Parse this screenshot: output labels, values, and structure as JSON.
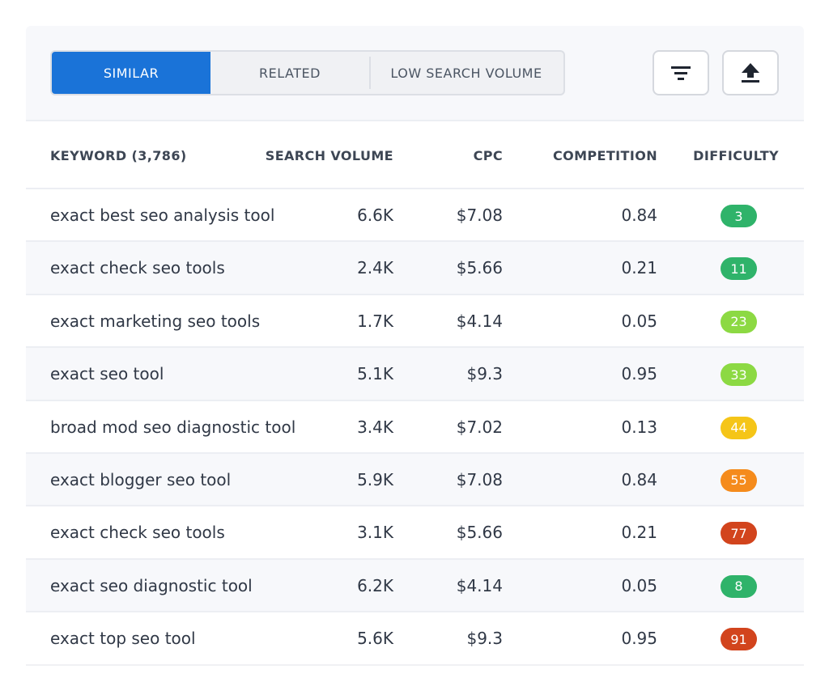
{
  "tabs": [
    {
      "label": "SIMILAR",
      "active": true
    },
    {
      "label": "RELATED",
      "active": false
    },
    {
      "label": "LOW SEARCH VOLUME",
      "active": false
    }
  ],
  "toolbar": {
    "filter_icon": "filter-icon",
    "export_icon": "upload-icon"
  },
  "table": {
    "headers": {
      "keyword": "KEYWORD (3,786)",
      "search_volume": "SEARCH VOLUME",
      "cpc": "CPC",
      "competition": "COMPETITION",
      "difficulty": "DIFFICULTY"
    },
    "rows": [
      {
        "keyword": "exact best seo analysis tool",
        "volume": "6.6K",
        "cpc": "$7.08",
        "competition": "0.84",
        "difficulty": "3",
        "color": "#2fb36a"
      },
      {
        "keyword": "exact check seo tools",
        "volume": "2.4K",
        "cpc": "$5.66",
        "competition": "0.21",
        "difficulty": "11",
        "color": "#2fb36a"
      },
      {
        "keyword": "exact marketing seo tools",
        "volume": "1.7K",
        "cpc": "$4.14",
        "competition": "0.05",
        "difficulty": "23",
        "color": "#8cd943"
      },
      {
        "keyword": "exact seo tool",
        "volume": "5.1K",
        "cpc": "$9.3",
        "competition": "0.95",
        "difficulty": "33",
        "color": "#8cd943"
      },
      {
        "keyword": "broad mod seo diagnostic tool",
        "volume": "3.4K",
        "cpc": "$7.02",
        "competition": "0.13",
        "difficulty": "44",
        "color": "#f5c518"
      },
      {
        "keyword": "exact blogger seo tool",
        "volume": "5.9K",
        "cpc": "$7.08",
        "competition": "0.84",
        "difficulty": "55",
        "color": "#f58b1c"
      },
      {
        "keyword": "exact check seo tools",
        "volume": "3.1K",
        "cpc": "$5.66",
        "competition": "0.21",
        "difficulty": "77",
        "color": "#d2441d"
      },
      {
        "keyword": "exact seo diagnostic tool",
        "volume": "6.2K",
        "cpc": "$4.14",
        "competition": "0.05",
        "difficulty": "8",
        "color": "#2fb36a"
      },
      {
        "keyword": "exact top seo tool",
        "volume": "5.6K",
        "cpc": "$9.3",
        "competition": "0.95",
        "difficulty": "91",
        "color": "#d2441d"
      }
    ]
  }
}
